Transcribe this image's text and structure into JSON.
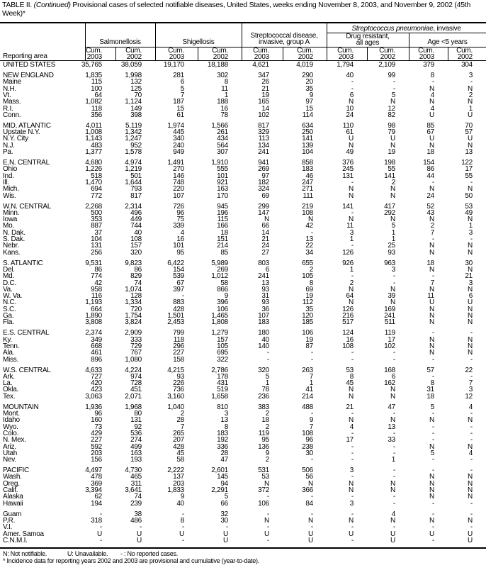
{
  "title": {
    "prefix": "TABLE II. ",
    "continued": "(Continued)",
    "text": " Provisional cases of selected notifiable diseases, United States, weeks ending November 8, 2003, and November 9, 2002 (45th Week)*"
  },
  "header": {
    "reporting_area": "Reporting area",
    "salmonellosis": "Salmonellosis",
    "shigellosis": "Shigellosis",
    "strep_a_line1": "Streptococcal disease,",
    "strep_a_line2": "invasive, group A",
    "strep_pneumo_italic": "Streptococcus pneumoniae",
    "strep_pneumo_rest": ", invasive",
    "drug_resistant_line1": "Drug resistant,",
    "drug_resistant_line2": "all ages",
    "age_under5": "Age <5 years",
    "cum": "Cum.",
    "years": [
      "2003",
      "2002",
      "2003",
      "2002",
      "2003",
      "2002",
      "2003",
      "2002",
      "2003",
      "2002"
    ]
  },
  "total": [
    "UNITED STATES",
    "35,765",
    "38,059",
    "19,170",
    "18,188",
    "4,621",
    "4,019",
    "1,794",
    "2,109",
    "379",
    "304"
  ],
  "groups": [
    [
      [
        "NEW ENGLAND",
        "1,835",
        "1,998",
        "281",
        "302",
        "347",
        "290",
        "40",
        "99",
        "8",
        "3"
      ],
      [
        "Maine",
        "115",
        "132",
        "6",
        "8",
        "26",
        "20",
        "-",
        "-",
        "-",
        "-"
      ],
      [
        "N.H.",
        "100",
        "125",
        "5",
        "11",
        "21",
        "35",
        "-",
        "-",
        "N",
        "N"
      ],
      [
        "Vt.",
        "64",
        "70",
        "7",
        "1",
        "19",
        "9",
        "6",
        "5",
        "4",
        "2"
      ],
      [
        "Mass.",
        "1,082",
        "1,124",
        "187",
        "188",
        "165",
        "97",
        "N",
        "N",
        "N",
        "N"
      ],
      [
        "R.I.",
        "118",
        "149",
        "15",
        "16",
        "14",
        "15",
        "10",
        "12",
        "4",
        "1"
      ],
      [
        "Conn.",
        "356",
        "398",
        "61",
        "78",
        "102",
        "114",
        "24",
        "82",
        "U",
        "U"
      ]
    ],
    [
      [
        "MID. ATLANTIC",
        "4,011",
        "5,119",
        "1,974",
        "1,566",
        "817",
        "634",
        "110",
        "98",
        "85",
        "70"
      ],
      [
        "Upstate N.Y.",
        "1,008",
        "1,342",
        "445",
        "261",
        "329",
        "250",
        "61",
        "79",
        "67",
        "57"
      ],
      [
        "N.Y. City",
        "1,143",
        "1,247",
        "340",
        "434",
        "113",
        "141",
        "U",
        "U",
        "U",
        "U"
      ],
      [
        "N.J.",
        "483",
        "952",
        "240",
        "564",
        "134",
        "139",
        "N",
        "N",
        "N",
        "N"
      ],
      [
        "Pa.",
        "1,377",
        "1,578",
        "949",
        "307",
        "241",
        "104",
        "49",
        "19",
        "18",
        "13"
      ]
    ],
    [
      [
        "E.N. CENTRAL",
        "4,680",
        "4,974",
        "1,491",
        "1,910",
        "941",
        "858",
        "376",
        "198",
        "154",
        "122"
      ],
      [
        "Ohio",
        "1,226",
        "1,219",
        "270",
        "555",
        "269",
        "183",
        "245",
        "55",
        "86",
        "17"
      ],
      [
        "Ind.",
        "518",
        "501",
        "146",
        "101",
        "97",
        "46",
        "131",
        "141",
        "44",
        "55"
      ],
      [
        "Ill.",
        "1,470",
        "1,644",
        "748",
        "921",
        "182",
        "247",
        "-",
        "2",
        "-",
        "-"
      ],
      [
        "Mich.",
        "694",
        "793",
        "220",
        "163",
        "324",
        "271",
        "N",
        "N",
        "N",
        "N"
      ],
      [
        "Wis.",
        "772",
        "817",
        "107",
        "170",
        "69",
        "111",
        "N",
        "N",
        "24",
        "50"
      ]
    ],
    [
      [
        "W.N. CENTRAL",
        "2,268",
        "2,314",
        "726",
        "945",
        "299",
        "219",
        "141",
        "417",
        "52",
        "53"
      ],
      [
        "Minn.",
        "500",
        "496",
        "96",
        "196",
        "147",
        "108",
        "-",
        "292",
        "43",
        "49"
      ],
      [
        "Iowa",
        "353",
        "449",
        "75",
        "115",
        "N",
        "N",
        "N",
        "N",
        "N",
        "N"
      ],
      [
        "Mo.",
        "887",
        "744",
        "339",
        "166",
        "66",
        "42",
        "11",
        "5",
        "2",
        "1"
      ],
      [
        "N. Dak.",
        "37",
        "40",
        "4",
        "18",
        "14",
        "-",
        "3",
        "1",
        "7",
        "3"
      ],
      [
        "S. Dak.",
        "104",
        "108",
        "16",
        "151",
        "21",
        "13",
        "1",
        "1",
        "-",
        "-"
      ],
      [
        "Nebr.",
        "131",
        "157",
        "101",
        "214",
        "24",
        "22",
        "-",
        "25",
        "N",
        "N"
      ],
      [
        "Kans.",
        "256",
        "320",
        "95",
        "85",
        "27",
        "34",
        "126",
        "93",
        "N",
        "N"
      ]
    ],
    [
      [
        "S. ATLANTIC",
        "9,531",
        "9,823",
        "6,422",
        "5,989",
        "803",
        "655",
        "926",
        "963",
        "18",
        "30"
      ],
      [
        "Del.",
        "86",
        "86",
        "154",
        "269",
        "6",
        "2",
        "1",
        "3",
        "N",
        "N"
      ],
      [
        "Md.",
        "774",
        "829",
        "539",
        "1,012",
        "241",
        "105",
        "-",
        "-",
        "-",
        "21"
      ],
      [
        "D.C.",
        "42",
        "74",
        "67",
        "58",
        "13",
        "8",
        "2",
        "-",
        "7",
        "3"
      ],
      [
        "Va.",
        "958",
        "1,074",
        "397",
        "866",
        "93",
        "69",
        "N",
        "N",
        "N",
        "N"
      ],
      [
        "W. Va.",
        "116",
        "128",
        "-",
        "9",
        "31",
        "19",
        "64",
        "39",
        "11",
        "6"
      ],
      [
        "N.C.",
        "1,193",
        "1,334",
        "883",
        "396",
        "93",
        "112",
        "N",
        "N",
        "U",
        "U"
      ],
      [
        "S.C.",
        "664",
        "720",
        "428",
        "106",
        "36",
        "35",
        "126",
        "169",
        "N",
        "N"
      ],
      [
        "Ga.",
        "1,890",
        "1,754",
        "1,501",
        "1,465",
        "107",
        "120",
        "216",
        "241",
        "N",
        "N"
      ],
      [
        "Fla.",
        "3,808",
        "3,824",
        "2,453",
        "1,808",
        "183",
        "185",
        "517",
        "511",
        "N",
        "N"
      ]
    ],
    [
      [
        "E.S. CENTRAL",
        "2,374",
        "2,909",
        "799",
        "1,279",
        "180",
        "106",
        "124",
        "119",
        "-",
        "-"
      ],
      [
        "Ky.",
        "349",
        "333",
        "118",
        "157",
        "40",
        "19",
        "16",
        "17",
        "N",
        "N"
      ],
      [
        "Tenn.",
        "668",
        "729",
        "296",
        "105",
        "140",
        "87",
        "108",
        "102",
        "N",
        "N"
      ],
      [
        "Ala.",
        "461",
        "767",
        "227",
        "695",
        "-",
        "-",
        "-",
        "-",
        "N",
        "N"
      ],
      [
        "Miss.",
        "896",
        "1,080",
        "158",
        "322",
        "-",
        "-",
        "-",
        "-",
        "-",
        "-"
      ]
    ],
    [
      [
        "W.S. CENTRAL",
        "4,633",
        "4,224",
        "4,215",
        "2,786",
        "320",
        "263",
        "53",
        "168",
        "57",
        "22"
      ],
      [
        "Ark.",
        "727",
        "974",
        "93",
        "178",
        "5",
        "7",
        "8",
        "6",
        "-",
        "-"
      ],
      [
        "La.",
        "420",
        "728",
        "226",
        "431",
        "1",
        "1",
        "45",
        "162",
        "8",
        "7"
      ],
      [
        "Okla.",
        "423",
        "451",
        "736",
        "519",
        "78",
        "41",
        "N",
        "N",
        "31",
        "3"
      ],
      [
        "Tex.",
        "3,063",
        "2,071",
        "3,160",
        "1,658",
        "236",
        "214",
        "N",
        "N",
        "18",
        "12"
      ]
    ],
    [
      [
        "MOUNTAIN",
        "1,936",
        "1,968",
        "1,040",
        "810",
        "383",
        "488",
        "21",
        "47",
        "5",
        "4"
      ],
      [
        "Mont.",
        "96",
        "80",
        "2",
        "3",
        "2",
        "-",
        "-",
        "-",
        "-",
        "-"
      ],
      [
        "Idaho",
        "160",
        "131",
        "28",
        "13",
        "18",
        "9",
        "N",
        "N",
        "N",
        "N"
      ],
      [
        "Wyo.",
        "73",
        "92",
        "7",
        "8",
        "2",
        "7",
        "4",
        "13",
        "-",
        "-"
      ],
      [
        "Colo.",
        "429",
        "536",
        "265",
        "183",
        "119",
        "108",
        "-",
        "-",
        "-",
        "-"
      ],
      [
        "N. Mex.",
        "227",
        "274",
        "207",
        "192",
        "95",
        "96",
        "17",
        "33",
        "-",
        "-"
      ],
      [
        "Ariz.",
        "592",
        "499",
        "428",
        "336",
        "136",
        "238",
        "-",
        "-",
        "N",
        "N"
      ],
      [
        "Utah",
        "203",
        "163",
        "45",
        "28",
        "9",
        "30",
        "-",
        "-",
        "5",
        "4"
      ],
      [
        "Nev.",
        "156",
        "193",
        "58",
        "47",
        "2",
        "-",
        "-",
        "1",
        "-",
        "-"
      ]
    ],
    [
      [
        "PACIFIC",
        "4,497",
        "4,730",
        "2,222",
        "2,601",
        "531",
        "506",
        "3",
        "-",
        "-",
        "-"
      ],
      [
        "Wash.",
        "478",
        "465",
        "137",
        "145",
        "53",
        "56",
        "-",
        "-",
        "N",
        "N"
      ],
      [
        "Oreg.",
        "369",
        "311",
        "203",
        "94",
        "N",
        "N",
        "N",
        "N",
        "N",
        "N"
      ],
      [
        "Calif.",
        "3,394",
        "3,641",
        "1,833",
        "2,291",
        "372",
        "366",
        "N",
        "N",
        "N",
        "N"
      ],
      [
        "Alaska",
        "62",
        "74",
        "9",
        "5",
        "-",
        "-",
        "-",
        "-",
        "N",
        "N"
      ],
      [
        "Hawaii",
        "194",
        "239",
        "40",
        "66",
        "106",
        "84",
        "3",
        "-",
        "-",
        "-"
      ]
    ],
    [
      [
        "Guam",
        "-",
        "38",
        "-",
        "32",
        "-",
        "-",
        "-",
        "4",
        "-",
        "-"
      ],
      [
        "P.R.",
        "318",
        "486",
        "8",
        "30",
        "N",
        "N",
        "N",
        "N",
        "N",
        "N"
      ],
      [
        "V.I.",
        "-",
        "-",
        "-",
        "-",
        "-",
        "-",
        "-",
        "-",
        "-",
        "-"
      ],
      [
        "Amer. Samoa",
        "U",
        "U",
        "U",
        "U",
        "U",
        "U",
        "U",
        "U",
        "U",
        "U"
      ],
      [
        "C.N.M.I.",
        "-",
        "U",
        "-",
        "U",
        "-",
        "U",
        "-",
        "U",
        "-",
        "U"
      ]
    ]
  ],
  "footnotes": {
    "legend_n": "N: Not notifiable.",
    "legend_u": "U: Unavailable.",
    "legend_dash": "- : No reported cases.",
    "note": "* Incidence data for reporting years 2002 and 2003 are provisional and cumulative (year-to-date)."
  }
}
